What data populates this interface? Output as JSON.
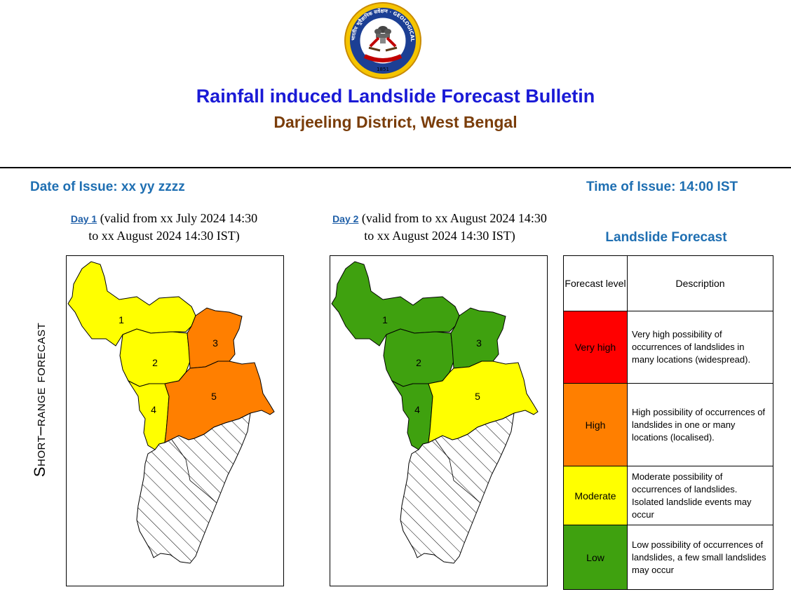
{
  "header": {
    "title": "Rainfall induced Landslide Forecast Bulletin",
    "subtitle": "Darjeeling District, West Bengal",
    "date_of_issue": "Date of Issue: xx yy zzzz",
    "time_of_issue": "Time of Issue: 14:00 IST"
  },
  "logo": {
    "ring_text": "भारतीय भूवैज्ञानिक सर्वेक्षण · GEOLOGICAL SURVEY OF INDIA",
    "year": "1851"
  },
  "side_label": "Short–range forecast",
  "days": [
    {
      "link": "Day 1",
      "validity": " (valid from xx July 2024 14:30 to xx August 2024 14:30 IST)",
      "zones": [
        {
          "id": "1",
          "level": "Moderate"
        },
        {
          "id": "2",
          "level": "Moderate"
        },
        {
          "id": "3",
          "level": "High"
        },
        {
          "id": "4",
          "level": "Moderate"
        },
        {
          "id": "5",
          "level": "High"
        }
      ]
    },
    {
      "link": "Day 2",
      "validity": " (valid from to xx August 2024 14:30 to xx August 2024 14:30 IST)",
      "zones": [
        {
          "id": "1",
          "level": "Low"
        },
        {
          "id": "2",
          "level": "Low"
        },
        {
          "id": "3",
          "level": "Low"
        },
        {
          "id": "4",
          "level": "Low"
        },
        {
          "id": "5",
          "level": "Moderate"
        }
      ]
    }
  ],
  "legend": {
    "title": "Landslide Forecast",
    "col_level": "Forecast level",
    "col_desc": "Description",
    "levels": [
      {
        "name": "Very high",
        "color": "#ff0000",
        "desc": "Very high possibility of occurrences of landslides in many locations (widespread)."
      },
      {
        "name": "High",
        "color": "#ff7f00",
        "desc": "High possibility of occurrences of landslides in one or many locations (localised)."
      },
      {
        "name": "Moderate",
        "color": "#ffff00",
        "desc": "Moderate  possibility of occurrences of landslides. Isolated landslide events may occur"
      },
      {
        "name": "Low",
        "color": "#3fa10f",
        "desc": "Low possibility of occurrences of landslides, a few small landslides may occur"
      }
    ]
  }
}
